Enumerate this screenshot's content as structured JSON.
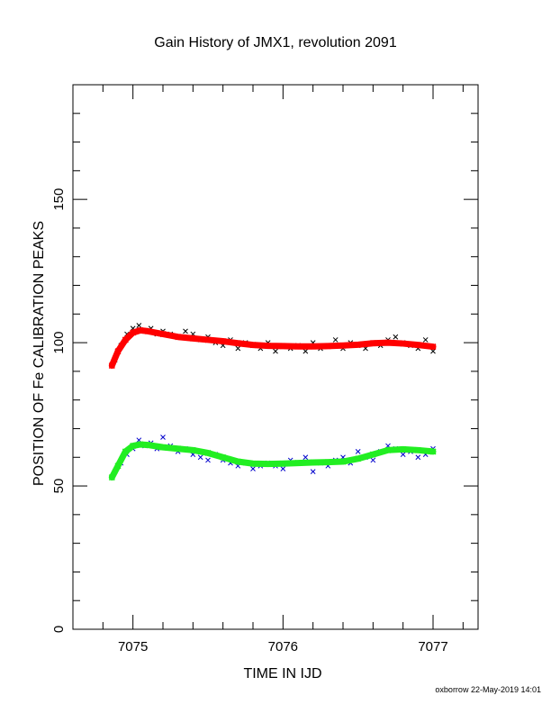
{
  "chart_data": {
    "type": "scatter",
    "title": "Gain History of JMX1, revolution 2091",
    "xlabel": "TIME IN IJD",
    "ylabel": "POSITION OF Fe CALIBRATION PEAKS",
    "xlim": [
      7074.6,
      7077.3
    ],
    "ylim": [
      0,
      190
    ],
    "x_ticks": [
      7075,
      7076,
      7077
    ],
    "x_tick_labels": [
      "7075",
      "7076",
      "7077"
    ],
    "y_ticks": [
      0,
      50,
      100,
      150
    ],
    "y_tick_labels": [
      "0",
      "50",
      "100",
      "150"
    ],
    "grid": false,
    "legend": "none",
    "series": [
      {
        "role": "upper peak raw measurements",
        "marker": "x",
        "color": "#000000",
        "x": [
          7074.88,
          7074.92,
          7074.96,
          7075.0,
          7075.04,
          7075.08,
          7075.12,
          7075.16,
          7075.2,
          7075.25,
          7075.3,
          7075.35,
          7075.4,
          7075.45,
          7075.5,
          7075.55,
          7075.6,
          7075.65,
          7075.7,
          7075.75,
          7075.8,
          7075.85,
          7075.9,
          7075.95,
          7076.0,
          7076.05,
          7076.1,
          7076.15,
          7076.2,
          7076.25,
          7076.3,
          7076.35,
          7076.4,
          7076.45,
          7076.5,
          7076.55,
          7076.6,
          7076.65,
          7076.7,
          7076.75,
          7076.8,
          7076.85,
          7076.9,
          7076.95,
          7077.0
        ],
        "y": [
          94,
          99,
          103,
          105,
          106,
          104,
          105,
          103,
          104,
          103,
          102,
          104,
          103,
          101,
          102,
          100,
          99,
          101,
          98,
          100,
          99,
          98,
          100,
          97,
          99,
          98,
          99,
          97,
          100,
          98,
          99,
          101,
          98,
          100,
          99,
          98,
          100,
          99,
          101,
          102,
          100,
          99,
          98,
          101,
          97
        ]
      },
      {
        "role": "upper peak fitted gain curve",
        "marker": "x",
        "color": "#ff0000",
        "x": [
          7074.86,
          7074.9,
          7074.95,
          7075.0,
          7075.05,
          7075.1,
          7075.2,
          7075.3,
          7075.4,
          7075.5,
          7075.6,
          7075.7,
          7075.8,
          7075.9,
          7076.0,
          7076.1,
          7076.2,
          7076.3,
          7076.4,
          7076.5,
          7076.6,
          7076.7,
          7076.8,
          7076.9,
          7077.0
        ],
        "y": [
          92,
          97,
          101,
          103.5,
          104.3,
          104,
          103,
          102,
          101.5,
          101,
          100.5,
          99.8,
          99.2,
          98.9,
          98.8,
          98.7,
          98.7,
          98.8,
          99,
          99.3,
          99.8,
          100,
          99.7,
          99.2,
          98.6
        ]
      },
      {
        "role": "lower peak raw measurements",
        "marker": "x",
        "color": "#0000cc",
        "x": [
          7074.88,
          7074.92,
          7074.96,
          7075.0,
          7075.04,
          7075.08,
          7075.12,
          7075.16,
          7075.2,
          7075.25,
          7075.3,
          7075.35,
          7075.4,
          7075.45,
          7075.5,
          7075.55,
          7075.6,
          7075.65,
          7075.7,
          7075.75,
          7075.8,
          7075.85,
          7075.9,
          7075.95,
          7076.0,
          7076.05,
          7076.1,
          7076.15,
          7076.2,
          7076.25,
          7076.3,
          7076.35,
          7076.4,
          7076.45,
          7076.5,
          7076.55,
          7076.6,
          7076.65,
          7076.7,
          7076.75,
          7076.8,
          7076.85,
          7076.9,
          7076.95,
          7077.0
        ],
        "y": [
          55,
          58,
          61,
          63,
          66,
          64,
          65,
          63,
          67,
          64,
          62,
          63,
          61,
          60,
          59,
          61,
          59,
          58,
          57,
          58,
          56,
          57,
          58,
          57,
          56,
          59,
          58,
          60,
          55,
          58,
          57,
          59,
          60,
          58,
          62,
          60,
          59,
          62,
          64,
          63,
          61,
          62,
          60,
          61,
          63
        ]
      },
      {
        "role": "lower peak fitted gain curve",
        "marker": "x",
        "color": "#22ee22",
        "x": [
          7074.86,
          7074.9,
          7074.95,
          7075.0,
          7075.05,
          7075.1,
          7075.2,
          7075.3,
          7075.4,
          7075.5,
          7075.6,
          7075.7,
          7075.8,
          7075.9,
          7076.0,
          7076.1,
          7076.2,
          7076.3,
          7076.4,
          7076.5,
          7076.6,
          7076.7,
          7076.8,
          7076.9,
          7077.0
        ],
        "y": [
          53,
          57,
          62,
          64,
          64.5,
          64.3,
          63.5,
          63,
          62.5,
          61.5,
          60,
          58.5,
          57.8,
          57.7,
          57.8,
          58,
          58.2,
          58.3,
          58.5,
          59.5,
          61,
          62.5,
          62.8,
          62.5,
          62
        ]
      }
    ]
  },
  "footer": {
    "credit": "oxborrow 22-May-2019 14:01"
  }
}
